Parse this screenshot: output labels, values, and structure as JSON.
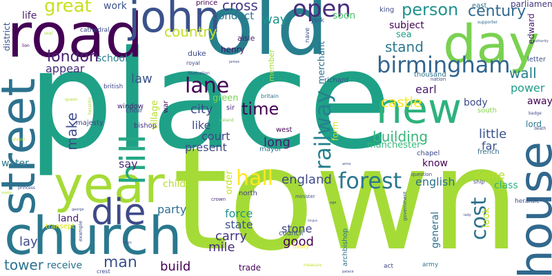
{
  "words": [
    {
      "text": "place",
      "color": "#1fa187"
    },
    {
      "text": "town",
      "color": "#a5db36"
    },
    {
      "text": "old",
      "color": "#277f8e"
    },
    {
      "text": "road",
      "color": "#440154"
    },
    {
      "text": "church",
      "color": "#2a788e"
    },
    {
      "text": "year",
      "color": "#a5db36"
    },
    {
      "text": "street",
      "color": "#2c728e"
    },
    {
      "text": "house",
      "color": "#31688e"
    },
    {
      "text": "day",
      "color": "#7ad151"
    },
    {
      "text": "john",
      "color": "#3b528b"
    },
    {
      "text": "new",
      "color": "#2db27d"
    },
    {
      "text": "die",
      "color": "#3e4a89"
    },
    {
      "text": "hill",
      "color": "#22a884"
    },
    {
      "text": "birmingham",
      "color": "#32648e"
    },
    {
      "text": "forest",
      "color": "#2a788e"
    },
    {
      "text": "railway",
      "color": "#26828e"
    },
    {
      "text": "open",
      "color": "#472d7b"
    },
    {
      "text": "cost",
      "color": "#2c728e"
    },
    {
      "text": "lane",
      "color": "#440154"
    },
    {
      "text": "hall",
      "color": "#fde725"
    },
    {
      "text": "great",
      "color": "#c8e020"
    },
    {
      "text": "london",
      "color": "#481f70"
    },
    {
      "text": "person",
      "color": "#20928c"
    },
    {
      "text": "century",
      "color": "#31688e"
    },
    {
      "text": "man",
      "color": "#3b528b"
    },
    {
      "text": "time",
      "color": "#440154"
    },
    {
      "text": "tower",
      "color": "#2c728e"
    },
    {
      "text": "castle",
      "color": "#fde725"
    },
    {
      "text": "building",
      "color": "#35b779"
    },
    {
      "text": "country",
      "color": "#c2df23"
    },
    {
      "text": "stand",
      "color": "#2a788e"
    },
    {
      "text": "cross",
      "color": "#443983"
    },
    {
      "text": "make",
      "color": "#3e4a89"
    },
    {
      "text": "wall",
      "color": "#277f8e"
    },
    {
      "text": "england",
      "color": "#3e4a89"
    },
    {
      "text": "little",
      "color": "#3b528b"
    },
    {
      "text": "lay",
      "color": "#3e4a89"
    },
    {
      "text": "mile",
      "color": "#472d7b"
    },
    {
      "text": "good",
      "color": "#440154"
    },
    {
      "text": "carry",
      "color": "#46327e"
    },
    {
      "text": "english",
      "color": "#2c728e"
    },
    {
      "text": "court",
      "color": "#414487"
    },
    {
      "text": "long",
      "color": "#481f70"
    },
    {
      "text": "law",
      "color": "#3b528b"
    },
    {
      "text": "city",
      "color": "#3e4a89"
    },
    {
      "text": "earl",
      "color": "#481a6c"
    },
    {
      "text": "power",
      "color": "#1f9e89"
    },
    {
      "text": "build",
      "color": "#440154"
    },
    {
      "text": "party",
      "color": "#2d708e"
    },
    {
      "text": "state",
      "color": "#3b528b"
    },
    {
      "text": "conduct",
      "color": "#2c728e"
    },
    {
      "text": "way",
      "color": "#20928c"
    },
    {
      "text": "soon",
      "color": "#4ac16d"
    },
    {
      "text": "subject",
      "color": "#440154"
    },
    {
      "text": "work",
      "color": "#3b528b"
    },
    {
      "text": "life",
      "color": "#481f70"
    },
    {
      "text": "school",
      "color": "#277f8e"
    },
    {
      "text": "appear",
      "color": "#472d7b"
    },
    {
      "text": "present",
      "color": "#3e4a89"
    },
    {
      "text": "like",
      "color": "#3e4a89"
    },
    {
      "text": "say",
      "color": "#482878"
    },
    {
      "text": "child",
      "color": "#b5de2b"
    },
    {
      "text": "force",
      "color": "#20928c"
    },
    {
      "text": "stone",
      "color": "#414487"
    },
    {
      "text": "receive",
      "color": "#2c728e"
    },
    {
      "text": "land",
      "color": "#481f70"
    },
    {
      "text": "water",
      "color": "#2a788e"
    },
    {
      "text": "body",
      "color": "#3e4a89"
    },
    {
      "text": "away",
      "color": "#440154"
    },
    {
      "text": "far",
      "color": "#3b528b"
    },
    {
      "text": "know",
      "color": "#440154"
    },
    {
      "text": "come",
      "color": "#b5de2b"
    },
    {
      "text": "class",
      "color": "#2db27d"
    },
    {
      "text": "general",
      "color": "#2c728e"
    },
    {
      "text": "look",
      "color": "#c2df23"
    },
    {
      "text": "sea",
      "color": "#1f9e89"
    },
    {
      "text": "merchant",
      "color": "#2c728e"
    },
    {
      "text": "manchester",
      "color": "#35b779"
    },
    {
      "text": "order",
      "color": "#c8e020"
    },
    {
      "text": "henry",
      "color": "#471164"
    },
    {
      "text": "village",
      "color": "#b5de2b"
    },
    {
      "text": "green",
      "color": "#7ad151"
    },
    {
      "text": "form",
      "color": "#d8e219"
    },
    {
      "text": "parliament",
      "color": "#443983"
    },
    {
      "text": "edward",
      "color": "#481a6c"
    },
    {
      "text": "district",
      "color": "#3b528b"
    },
    {
      "text": "lord",
      "color": "#2a788e"
    },
    {
      "text": "duke",
      "color": "#3e4a89"
    },
    {
      "text": "aisle",
      "color": "#481a6c"
    },
    {
      "text": "member",
      "color": "#a5db36"
    },
    {
      "text": "king",
      "color": "#3e4a89"
    },
    {
      "text": "east",
      "color": "#2c728e"
    },
    {
      "text": "prince",
      "color": "#440154"
    },
    {
      "text": "letter",
      "color": "#3b528b"
    },
    {
      "text": "south",
      "color": "#86d549"
    },
    {
      "text": "trade",
      "color": "#440154"
    },
    {
      "text": "french",
      "color": "#31688e"
    },
    {
      "text": "chapel",
      "color": "#3e4a89"
    },
    {
      "text": "richard",
      "color": "#3b528b"
    },
    {
      "text": "thousand",
      "color": "#2c728e"
    },
    {
      "text": "bishop",
      "color": "#46327e"
    },
    {
      "text": "window",
      "color": "#481f70"
    },
    {
      "text": "choir",
      "color": "#443983"
    },
    {
      "text": "majesty",
      "color": "#414487"
    },
    {
      "text": "west",
      "color": "#440154"
    },
    {
      "text": "mayor",
      "color": "#2c728e"
    },
    {
      "text": "sir",
      "color": "#472d7b"
    },
    {
      "text": "north",
      "color": "#443983"
    },
    {
      "text": "council",
      "color": "#3b528b"
    },
    {
      "text": "archbishop",
      "color": "#2c728e"
    },
    {
      "text": "transept",
      "color": "#d8e219"
    },
    {
      "text": "war",
      "color": "#471164"
    },
    {
      "text": "cathedral",
      "color": "#3e4a89"
    },
    {
      "text": "british",
      "color": "#3e4a89"
    },
    {
      "text": "nave",
      "color": "#3b528b"
    },
    {
      "text": "york",
      "color": "#3b528b"
    },
    {
      "text": "royal",
      "color": "#3e4a89"
    },
    {
      "text": "heraldic",
      "color": "#3e4a89"
    },
    {
      "text": "ship",
      "color": "#414487"
    },
    {
      "text": "question",
      "color": "#3e4a89"
    },
    {
      "text": "army",
      "color": "#2a788e"
    },
    {
      "text": "act",
      "color": "#414487"
    },
    {
      "text": "crest",
      "color": "#3e4a89"
    },
    {
      "text": "minister",
      "color": "#3b528b"
    },
    {
      "text": "government",
      "color": "#3b528b"
    },
    {
      "text": "example",
      "color": "#3e4a89"
    },
    {
      "text": "treaty",
      "color": "#fde725"
    },
    {
      "text": "britain",
      "color": "#2c728e"
    },
    {
      "text": "nation",
      "color": "#3e4a89"
    },
    {
      "text": "crown",
      "color": "#472d7b"
    },
    {
      "text": "illustration",
      "color": "#3e4a89"
    },
    {
      "text": "ireland",
      "color": "#7ad151"
    },
    {
      "text": "lion",
      "color": "#440154"
    },
    {
      "text": "shield",
      "color": "#c8e020"
    },
    {
      "text": "princess",
      "color": "#3e4a89"
    },
    {
      "text": "queen",
      "color": "#b5de2b"
    },
    {
      "text": "supporter",
      "color": "#31688e"
    },
    {
      "text": "authority",
      "color": "#3b528b"
    },
    {
      "text": "badge",
      "color": "#3e4a89"
    },
    {
      "text": "death",
      "color": "#3e4a89"
    },
    {
      "text": "james",
      "color": "#3e4a89"
    },
    {
      "text": "measure",
      "color": "#c8e020"
    },
    {
      "text": "palace",
      "color": "#3e4a89"
    },
    {
      "text": "george",
      "color": "#3e4a89"
    },
    {
      "text": "reign",
      "color": "#3e4a89"
    },
    {
      "text": "seal",
      "color": "#a5db36"
    },
    {
      "text": "heraldry",
      "color": "#a5db36"
    },
    {
      "text": "motto",
      "color": "#b5de2b"
    },
    {
      "text": "arms",
      "color": "#3e4a89"
    },
    {
      "text": "age",
      "color": "#3e4a89"
    },
    {
      "text": "lady",
      "color": "#3e4a89"
    },
    {
      "text": "tongue",
      "color": "#3e4a89"
    }
  ]
}
